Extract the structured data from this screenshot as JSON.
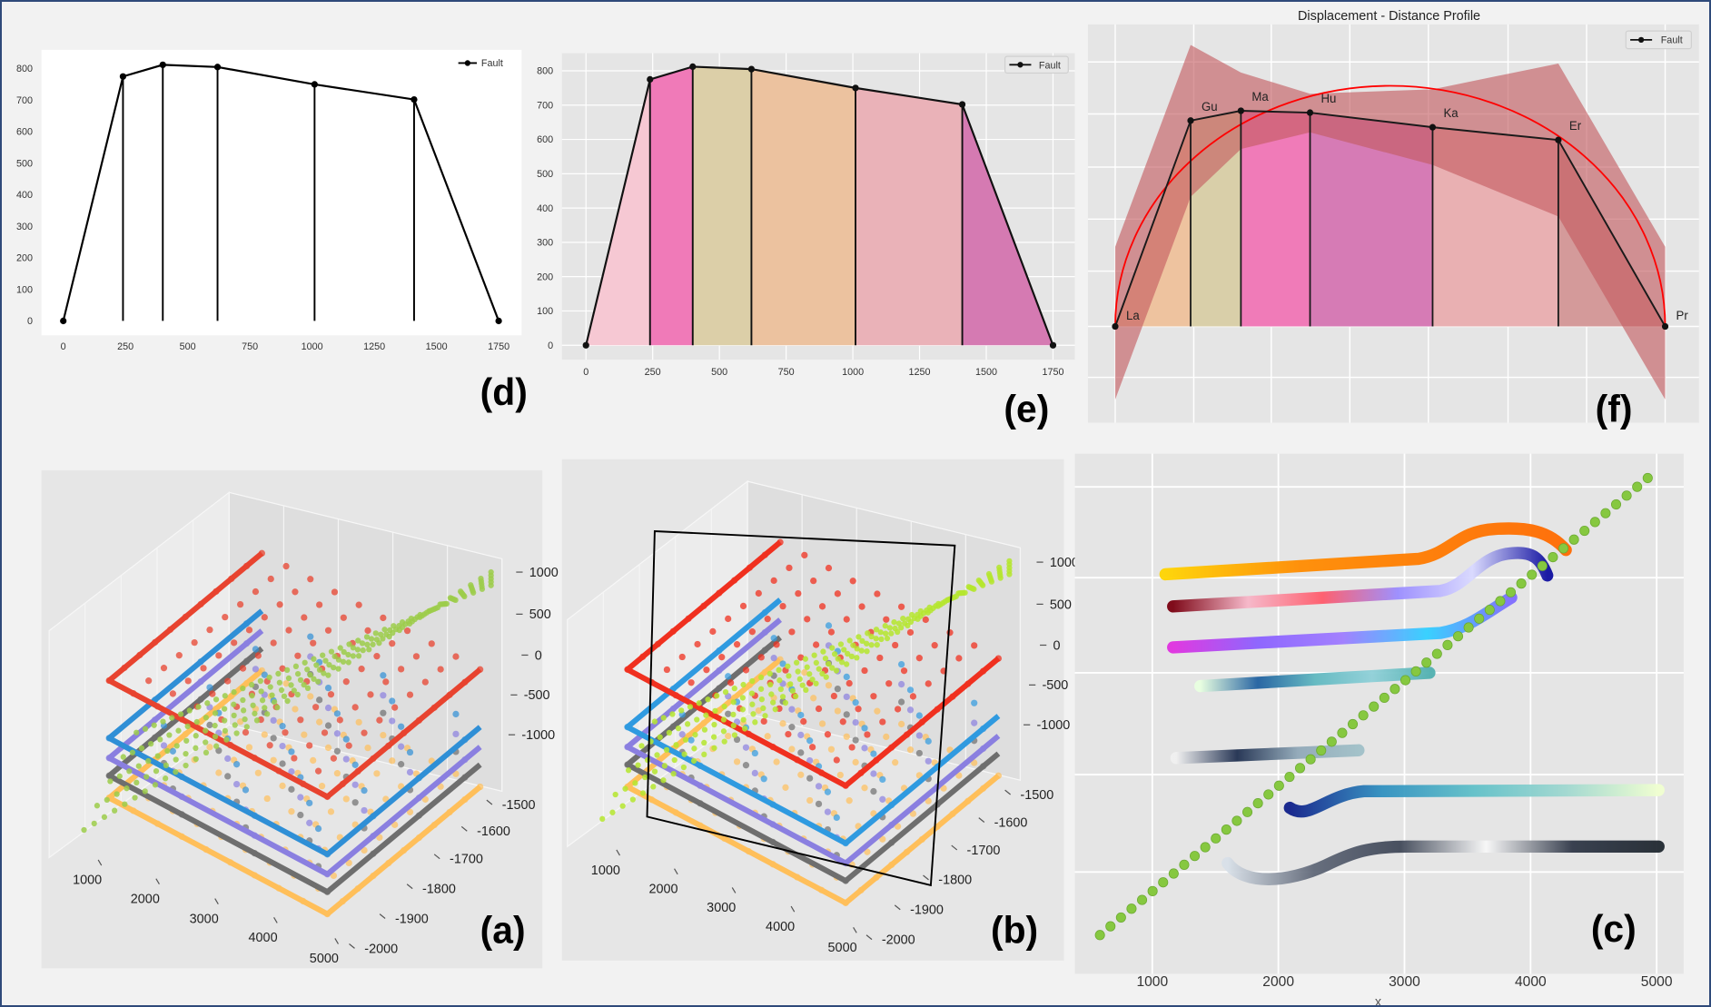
{
  "chart_data": [
    {
      "panel": "(d)",
      "type": "line",
      "series": [
        {
          "name": "Fault",
          "x": [
            0,
            240,
            400,
            620,
            1010,
            1410,
            1750
          ],
          "y": [
            0,
            775,
            812,
            805,
            750,
            702,
            0
          ]
        }
      ],
      "xticks": [
        0,
        250,
        500,
        750,
        1000,
        1250,
        1500,
        1750
      ],
      "yticks": [
        0,
        100,
        200,
        300,
        400,
        500,
        600,
        700,
        800
      ],
      "xlim": [
        0,
        1750
      ],
      "ylim": [
        0,
        800
      ],
      "grid": false,
      "legend": "top-right",
      "background": "#ffffff",
      "drop_lines": true
    },
    {
      "panel": "(e)",
      "type": "area",
      "series": [
        {
          "name": "Fault",
          "x": [
            0,
            240,
            400,
            620,
            1010,
            1410,
            1750
          ],
          "y": [
            0,
            775,
            812,
            805,
            750,
            702,
            0
          ]
        }
      ],
      "xticks": [
        0,
        250,
        500,
        750,
        1000,
        1250,
        1500,
        1750
      ],
      "yticks": [
        0,
        100,
        200,
        300,
        400,
        500,
        600,
        700,
        800
      ],
      "xlim": [
        0,
        1750
      ],
      "ylim": [
        0,
        800
      ],
      "grid": true,
      "legend": "top-right",
      "background": "#e5e5e5",
      "segment_colors": [
        "#f6c8d3",
        "#f07ab8",
        "#dccfa8",
        "#ecc29f",
        "#eab2b8",
        "#d57ab2"
      ]
    },
    {
      "panel": "(f)",
      "type": "area",
      "title": "Displacement - Distance Profile",
      "series": [
        {
          "name": "Fault",
          "x": [
            0,
            240,
            400,
            620,
            1010,
            1410,
            1750
          ],
          "y": [
            0,
            775,
            812,
            805,
            750,
            702,
            0
          ]
        }
      ],
      "point_labels": [
        "La",
        "Gu",
        "Ma",
        "Hu",
        "Ka",
        "Er",
        "Pr"
      ],
      "envelope_upper": [
        300,
        1060,
        956,
        876,
        893,
        990,
        300
      ],
      "envelope_lower": [
        -275,
        488,
        668,
        731,
        608,
        414,
        -275
      ],
      "fit_curve": "semi-ellipse",
      "fit_peak": 906,
      "fit_color": "#ff0000",
      "envelope_color": "#c45a5f",
      "segment_colors": [
        "#eec39f",
        "#d9cfa9",
        "#f07bb8",
        "#d67bb5",
        "#e9b0b2",
        "#d49a9a"
      ],
      "grid": true,
      "legend": "top-right",
      "background": "#e5e5e5"
    },
    {
      "panel": "(a)",
      "type": "scatter",
      "projection": "3d",
      "xticks": [
        1000,
        2000,
        3000,
        4000,
        5000
      ],
      "yticks": [
        -1500,
        -1600,
        -1700,
        -1800,
        -1900,
        -2000
      ],
      "zticks": [
        1000,
        500,
        0,
        -500,
        -1000
      ],
      "horizon_colors": [
        "#e8432f",
        "#2f8fd6",
        "#8a7fe0",
        "#6e6e6e",
        "#ffbf5a"
      ],
      "fault_color": "#9ccc4a"
    },
    {
      "panel": "(b)",
      "type": "scatter",
      "projection": "3d",
      "xticks": [
        1000,
        2000,
        3000,
        4000,
        5000
      ],
      "yticks": [
        -1500,
        -1600,
        -1700,
        -1800,
        -1900,
        -2000
      ],
      "zticks": [
        1000,
        500,
        0,
        -500,
        -1000
      ],
      "horizon_colors": [
        "#f0301f",
        "#2f9ae0",
        "#8a7fe0",
        "#6e6e6e",
        "#ffbf5a"
      ],
      "fault_color": "#b5e62e",
      "fault_plane": true
    },
    {
      "panel": "(c)",
      "type": "scatter",
      "xticks": [
        1000,
        2000,
        3000,
        4000,
        5000
      ],
      "xlabel": "x",
      "xlim": [
        1000,
        5000
      ],
      "grid": true,
      "background": "#e5e5e5",
      "fault_color": "#86c840"
    }
  ]
}
